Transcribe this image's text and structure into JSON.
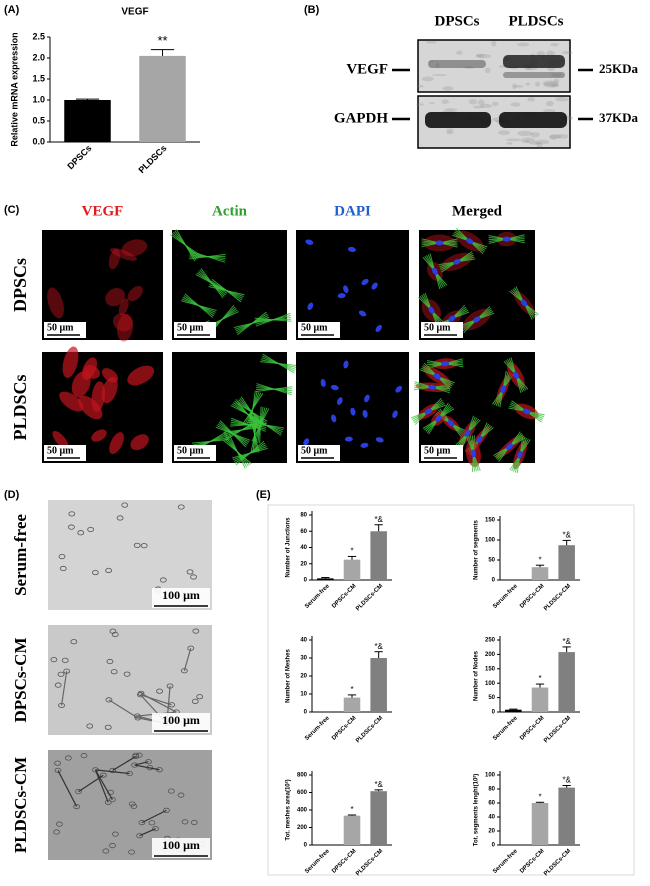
{
  "panels": [
    "(A)",
    "(B)",
    "(C)",
    "(D)",
    "(E)"
  ],
  "blot": {
    "lanes": [
      "DPSCs",
      "PLDSCs"
    ],
    "proteins": [
      "VEGF",
      "GAPDH"
    ],
    "markers": [
      "25KDa",
      "37KDa"
    ]
  },
  "imaging": {
    "columns": [
      "VEGF",
      "Actin",
      "DAPI",
      "Merged"
    ],
    "rows": [
      "DPSCs",
      "PLDSCs"
    ],
    "scale_bar": "50 μm"
  },
  "tube": {
    "rows": [
      "Serum-free",
      "DPSCs-CM",
      "PLDSCs-CM"
    ],
    "scale_bar": "100 μm"
  },
  "chart_data": [
    {
      "type": "bar",
      "title": "VEGF",
      "y_label": "Relative mRNA expression",
      "categories": [
        "DPSCs",
        "PLDSCs"
      ],
      "values": [
        1.0,
        2.05
      ],
      "errors": [
        0.02,
        0.15
      ],
      "colors": [
        "#000000",
        "#a6a6a6"
      ],
      "ylim": [
        0,
        2.5
      ],
      "yticks": [
        {
          "value": 0,
          "label": "0.0"
        },
        {
          "value": 0.5,
          "label": "0.5"
        },
        {
          "value": 1,
          "label": "1.0"
        },
        {
          "value": 1.5,
          "label": "1.5"
        },
        {
          "value": 2,
          "label": "2.0"
        },
        {
          "value": 2.5,
          "label": "2.5"
        }
      ],
      "annotations": [
        {
          "x": "PLDSCs",
          "text": "**"
        }
      ]
    },
    {
      "type": "bar",
      "y_label": "Number of Junctions",
      "categories": [
        "Serum-free",
        "DPSCs-CM",
        "PLDSCs-CM"
      ],
      "values": [
        2,
        25,
        60
      ],
      "errors": [
        1,
        4,
        8
      ],
      "colors": [
        "#000000",
        "#a6a6a6",
        "#808080"
      ],
      "ylim": [
        0,
        80
      ],
      "yticks": [
        0,
        20,
        40,
        60,
        80
      ],
      "annotations": [
        {
          "x": "DPSCs-CM",
          "text": "*"
        },
        {
          "x": "PLDSCs-CM",
          "text": "*&"
        }
      ]
    },
    {
      "type": "bar",
      "y_label": "Number of segments",
      "categories": [
        "Serum-free",
        "DPSCs-CM",
        "PLDSCs-CM"
      ],
      "values": [
        0,
        32,
        87
      ],
      "errors": [
        0,
        5,
        12
      ],
      "colors": [
        "#000000",
        "#a6a6a6",
        "#808080"
      ],
      "ylim": [
        0,
        150
      ],
      "yticks": [
        0,
        50,
        100,
        150
      ],
      "annotations": [
        {
          "x": "DPSCs-CM",
          "text": "*"
        },
        {
          "x": "PLDSCs-CM",
          "text": "*&"
        }
      ]
    },
    {
      "type": "bar",
      "y_label": "Number of Meshes",
      "categories": [
        "Serum-free",
        "DPSCs-CM",
        "PLDSCs-CM"
      ],
      "values": [
        0,
        8,
        30
      ],
      "errors": [
        0,
        1.5,
        3.5
      ],
      "colors": [
        "#000000",
        "#a6a6a6",
        "#808080"
      ],
      "ylim": [
        0,
        40
      ],
      "yticks": [
        0,
        10,
        20,
        30,
        40
      ],
      "annotations": [
        {
          "x": "DPSCs-CM",
          "text": "*"
        },
        {
          "x": "PLDSCs-CM",
          "text": "*&"
        }
      ]
    },
    {
      "type": "bar",
      "y_label": "Number of Nodes",
      "categories": [
        "Serum-free",
        "DPSCs-CM",
        "PLDSCs-CM"
      ],
      "values": [
        8,
        85,
        208
      ],
      "errors": [
        2,
        12,
        18
      ],
      "colors": [
        "#000000",
        "#a6a6a6",
        "#808080"
      ],
      "ylim": [
        0,
        250
      ],
      "yticks": [
        0,
        50,
        100,
        150,
        200,
        250
      ],
      "annotations": [
        {
          "x": "DPSCs-CM",
          "text": "*"
        },
        {
          "x": "PLDSCs-CM",
          "text": "*&"
        }
      ]
    },
    {
      "type": "bar",
      "y_label": "Tot. meshes area(10²)",
      "categories": [
        "Serum-free",
        "DPSCs-CM",
        "PLDSCs-CM"
      ],
      "values": [
        0,
        335,
        615
      ],
      "errors": [
        0,
        8,
        15
      ],
      "colors": [
        "#000000",
        "#a6a6a6",
        "#808080"
      ],
      "ylim": [
        0,
        800
      ],
      "yticks": [
        0,
        200,
        400,
        600,
        800
      ],
      "annotations": [
        {
          "x": "DPSCs-CM",
          "text": "*"
        },
        {
          "x": "PLDSCs-CM",
          "text": "*&"
        }
      ]
    },
    {
      "type": "bar",
      "y_label": "Tot. segments lenght(10²)",
      "categories": [
        "Serum-free",
        "DPSCs-CM",
        "PLDSCs-CM"
      ],
      "values": [
        0,
        60,
        82
      ],
      "errors": [
        0,
        1,
        3
      ],
      "colors": [
        "#000000",
        "#a6a6a6",
        "#808080"
      ],
      "ylim": [
        0,
        100
      ],
      "yticks": [
        0,
        20,
        40,
        60,
        80,
        100
      ],
      "annotations": [
        {
          "x": "DPSCs-CM",
          "text": "*"
        },
        {
          "x": "PLDSCs-CM",
          "text": "*&"
        }
      ]
    }
  ]
}
